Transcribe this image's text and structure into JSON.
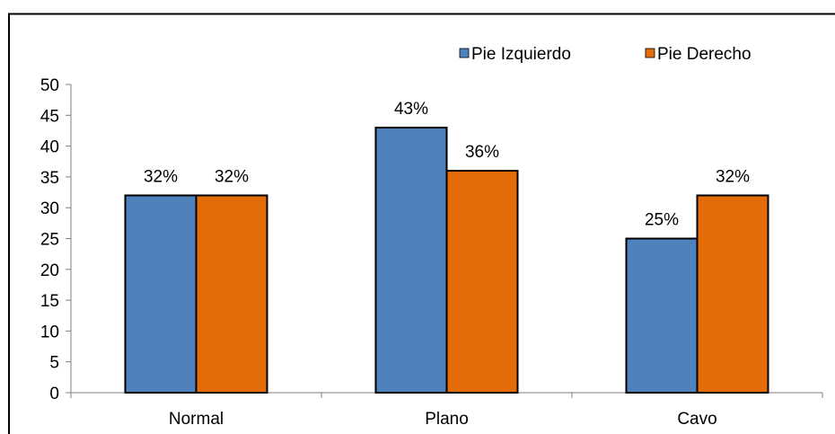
{
  "chart_data": {
    "type": "bar",
    "title": "",
    "xlabel": "",
    "ylabel": "",
    "categories": [
      "Normal",
      "Plano",
      "Cavo"
    ],
    "series": [
      {
        "name": "Pie Izquierdo",
        "values": [
          32,
          43,
          25
        ],
        "labels": [
          "32%",
          "43%",
          "25%"
        ],
        "color": "#4F81BD"
      },
      {
        "name": "Pie Derecho",
        "values": [
          32,
          36,
          32
        ],
        "labels": [
          "32%",
          "36%",
          "32%"
        ],
        "color": "#E36C09"
      }
    ],
    "ylim": [
      0,
      50
    ],
    "yticks": [
      0,
      5,
      10,
      15,
      20,
      25,
      30,
      35,
      40,
      45,
      50
    ],
    "grid": false,
    "legend_position": "top-right"
  }
}
